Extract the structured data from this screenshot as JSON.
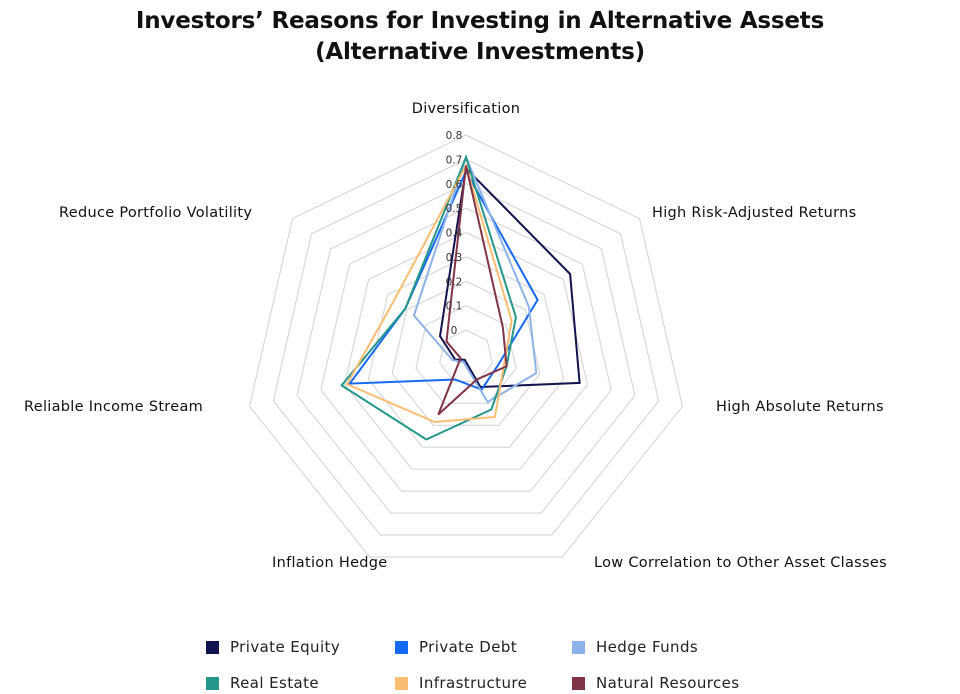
{
  "chart_data": {
    "type": "radar",
    "title_line1": "Investors’ Reasons for Investing in Alternative Assets",
    "title_line2": "(Alternative Investments)",
    "categories": [
      "Diversification",
      "High Risk-Adjusted Returns",
      "High Absolute Returns",
      "Low Correlation to Other Asset Classes",
      "Inflation Hedge",
      "Reliable Income Stream",
      "Reduce Portfolio Volatility"
    ],
    "ticks": [
      "0",
      "0.1",
      "0.2",
      "0.3",
      "0.4",
      "0.5",
      "0.6",
      "0.7",
      "0.8"
    ],
    "rlim": [
      0,
      0.8
    ],
    "series": [
      {
        "name": "Private Equity",
        "color": "#12124e",
        "values": [
          0.68,
          0.48,
          0.42,
          0.12,
          0.01,
          0.04,
          0.12
        ]
      },
      {
        "name": "Private Debt",
        "color": "#1769f2",
        "values": [
          0.67,
          0.33,
          0.12,
          0.13,
          0.09,
          0.43,
          0.28
        ]
      },
      {
        "name": "Hedge Funds",
        "color": "#8eb2ea",
        "values": [
          0.72,
          0.29,
          0.26,
          0.18,
          0.02,
          0.05,
          0.24
        ]
      },
      {
        "name": "Real Estate",
        "color": "#24978b",
        "values": [
          0.72,
          0.23,
          0.15,
          0.21,
          0.33,
          0.46,
          0.28
        ]
      },
      {
        "name": "Infrastructure",
        "color": "#fbbd72",
        "values": [
          0.69,
          0.21,
          0.14,
          0.24,
          0.26,
          0.44,
          0.33
        ]
      },
      {
        "name": "Natural Resources",
        "color": "#813447",
        "values": [
          0.69,
          0.17,
          0.15,
          0.09,
          0.23,
          0.02,
          0.09
        ]
      }
    ]
  },
  "legend": {
    "items": [
      {
        "label": "Private Equity",
        "color": "#12124e"
      },
      {
        "label": "Private Debt",
        "color": "#1769f2"
      },
      {
        "label": "Hedge Funds",
        "color": "#8eb2ea"
      },
      {
        "label": "Real Estate",
        "color": "#24978b"
      },
      {
        "label": "Infrastructure",
        "color": "#fbbd72"
      },
      {
        "label": "Natural Resources",
        "color": "#813447"
      }
    ]
  }
}
